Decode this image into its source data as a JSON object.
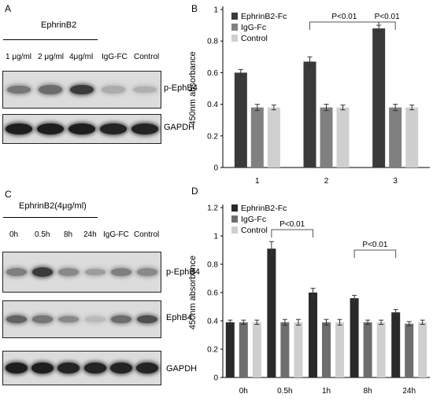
{
  "panel_a": {
    "label": "A",
    "group_label": "EphrinB2",
    "lanes": [
      "1 μg/ml",
      "2 μg/ml",
      "4μg/ml",
      "IgG-FC",
      "Control"
    ],
    "blots": [
      {
        "label": "p-EphB4",
        "intensity": [
          0.5,
          0.55,
          0.8,
          0.22,
          0.2
        ]
      },
      {
        "label": "GAPDH",
        "intensity": [
          0.95,
          0.95,
          0.95,
          0.92,
          0.92
        ]
      }
    ]
  },
  "panel_c": {
    "label": "C",
    "group_label": "EphrinB2(4μg/ml)",
    "lanes": [
      "0h",
      "0.5h",
      "8h",
      "24h",
      "IgG-FC",
      "Control"
    ],
    "blots": [
      {
        "label": "p-EphB4",
        "intensity": [
          0.45,
          0.8,
          0.4,
          0.3,
          0.45,
          0.4
        ]
      },
      {
        "label": "EphB4",
        "intensity": [
          0.6,
          0.5,
          0.4,
          0.15,
          0.55,
          0.7
        ]
      },
      {
        "label": "GAPDH",
        "intensity": [
          0.95,
          0.95,
          0.92,
          0.92,
          0.92,
          0.92
        ]
      }
    ]
  },
  "chart_data": [
    {
      "panel_label": "B",
      "type": "bar",
      "categories": [
        "1",
        "2",
        "3"
      ],
      "series": [
        {
          "name": "EphrinB2-Fc",
          "color": "#3a3a3a",
          "values": [
            0.6,
            0.67,
            0.88
          ],
          "errors": [
            0.02,
            0.03,
            0.02
          ]
        },
        {
          "name": "IgG-Fc",
          "color": "#808080",
          "values": [
            0.38,
            0.38,
            0.38
          ],
          "errors": [
            0.02,
            0.02,
            0.02
          ]
        },
        {
          "name": "Control",
          "color": "#cfcfcf",
          "values": [
            0.38,
            0.38,
            0.38
          ],
          "errors": [
            0.015,
            0.015,
            0.015
          ]
        }
      ],
      "ylabel": "450nm absorbance",
      "ylim": [
        0,
        1
      ],
      "yticks": [
        0,
        0.2,
        0.4,
        0.6,
        0.8,
        1
      ],
      "legend_position": "top-left",
      "annotations": [
        {
          "text": "P<0.01",
          "from_category": 1,
          "from_series": 0,
          "to_category": 2,
          "to_series": 0
        },
        {
          "text": "P<0.01",
          "from_category": 2,
          "from_series": 0,
          "to_category": 2,
          "to_series": 1
        }
      ]
    },
    {
      "panel_label": "D",
      "type": "bar",
      "categories": [
        "0h",
        "0.5h",
        "1h",
        "8h",
        "24h"
      ],
      "series": [
        {
          "name": "EphrinB2-Fc",
          "color": "#2a2a2a",
          "values": [
            0.39,
            0.91,
            0.6,
            0.56,
            0.46
          ],
          "errors": [
            0.015,
            0.05,
            0.03,
            0.02,
            0.02
          ]
        },
        {
          "name": "IgG-Fc",
          "color": "#6e6e6e",
          "values": [
            0.39,
            0.39,
            0.39,
            0.39,
            0.38
          ],
          "errors": [
            0.015,
            0.02,
            0.02,
            0.015,
            0.015
          ]
        },
        {
          "name": "Control",
          "color": "#cfcfcf",
          "values": [
            0.39,
            0.39,
            0.39,
            0.39,
            0.39
          ],
          "errors": [
            0.015,
            0.02,
            0.02,
            0.015,
            0.015
          ]
        }
      ],
      "ylabel": "450nm absorbance",
      "ylim": [
        0,
        1.2
      ],
      "yticks": [
        0,
        0.2,
        0.4,
        0.6,
        0.8,
        1,
        1.2
      ],
      "legend_position": "top-left",
      "annotations": [
        {
          "text": "P<0.01",
          "from_category": 1,
          "from_series": 0,
          "to_category": 2,
          "to_series": 0
        },
        {
          "text": "P<0.01",
          "from_category": 3,
          "from_series": 0,
          "to_category": 4,
          "to_series": 0
        }
      ]
    }
  ]
}
